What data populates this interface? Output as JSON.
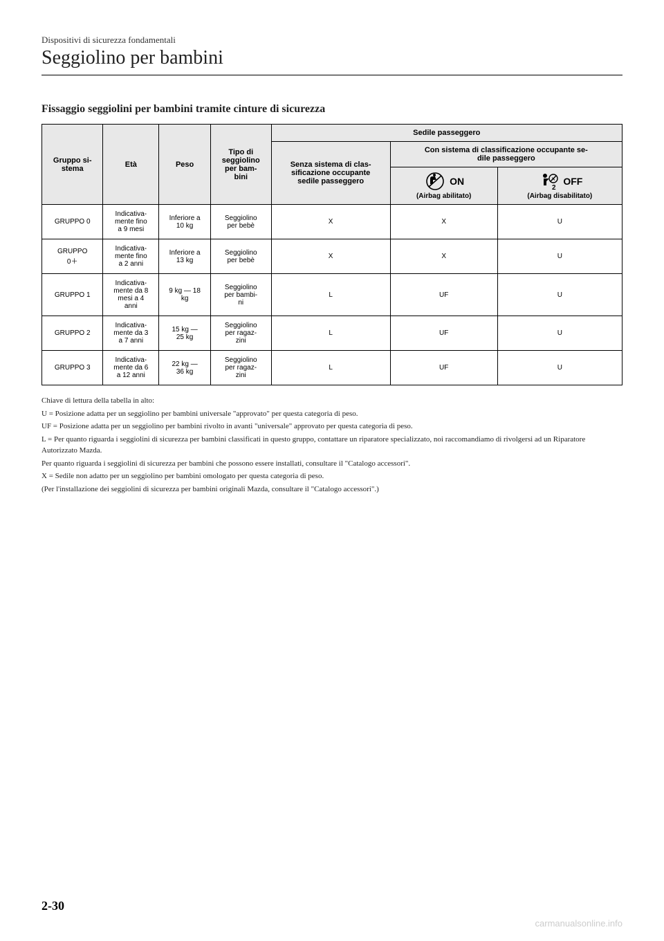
{
  "header": {
    "category": "Dispositivi di sicurezza fondamentali",
    "title": "Seggiolino per bambini"
  },
  "subtitle": "Fissaggio seggiolini per bambini tramite cinture di sicurezza",
  "table": {
    "headers": {
      "group": "Gruppo si-\nstema",
      "age": "Età",
      "weight": "Peso",
      "seatType": "Tipo di\nseggiolino\nper bam-\nbini",
      "passengerSeat": "Sedile passeggero",
      "noClass": "Senza sistema di clas-\nsificazione occupante\nsedile passeggero",
      "withClass": "Con sistema di classificazione occupante se-\ndile passeggero",
      "onLabel": "ON",
      "offLabel": "OFF",
      "airbagOn": "(Airbag abilitato)",
      "airbagOff": "(Airbag disabilitato)"
    },
    "rows": [
      {
        "group": "GRUPPO 0",
        "age": "Indicativa-\nmente fino\na 9 mesi",
        "weight": "Inferiore a\n10 kg",
        "seatType": "Seggiolino\nper bebè",
        "noClass": "X",
        "on": "X",
        "off": "U"
      },
      {
        "group": "GRUPPO\n0＋",
        "age": "Indicativa-\nmente fino\na 2 anni",
        "weight": "Inferiore a\n13 kg",
        "seatType": "Seggiolino\nper bebè",
        "noClass": "X",
        "on": "X",
        "off": "U"
      },
      {
        "group": "GRUPPO 1",
        "age": "Indicativa-\nmente da 8\nmesi a 4\nanni",
        "weight": "9 kg — 18\nkg",
        "seatType": "Seggiolino\nper bambi-\nni",
        "noClass": "L",
        "on": "UF",
        "off": "U"
      },
      {
        "group": "GRUPPO 2",
        "age": "Indicativa-\nmente da 3\na 7 anni",
        "weight": "15 kg —\n25 kg",
        "seatType": "Seggiolino\nper ragaz-\nzini",
        "noClass": "L",
        "on": "UF",
        "off": "U"
      },
      {
        "group": "GRUPPO 3",
        "age": "Indicativa-\nmente da 6\na 12 anni",
        "weight": "22 kg —\n36 kg",
        "seatType": "Seggiolino\nper ragaz-\nzini",
        "noClass": "L",
        "on": "UF",
        "off": "U"
      }
    ]
  },
  "legend": {
    "intro": "Chiave di lettura della tabella in alto:",
    "u": "U = Posizione adatta per un seggiolino per bambini universale \"approvato\" per questa categoria di peso.",
    "uf": "UF = Posizione adatta per un seggiolino per bambini rivolto in avanti \"universale\" approvato per questa categoria di peso.",
    "l1": "L = Per quanto riguarda i seggiolini di sicurezza per bambini classificati in questo gruppo, contattare un riparatore specializzato, noi raccomandiamo di rivolgersi ad un Riparatore Autorizzato Mazda.",
    "l2": "Per quanto riguarda i seggiolini di sicurezza per bambini che possono essere installati, consultare il \"Catalogo accessori\".",
    "x": "X = Sedile non adatto per un seggiolino per bambini omologato per questa categoria di peso.",
    "note": "(Per l'installazione dei seggiolini di sicurezza per bambini originali Mazda, consultare il \"Catalogo accessori\".)"
  },
  "pageNumber": "2-30",
  "watermark": "carmanualsonline.info",
  "colors": {
    "headerBg": "#e8e8e8",
    "border": "#000000",
    "text": "#222222",
    "watermark": "#cccccc"
  }
}
